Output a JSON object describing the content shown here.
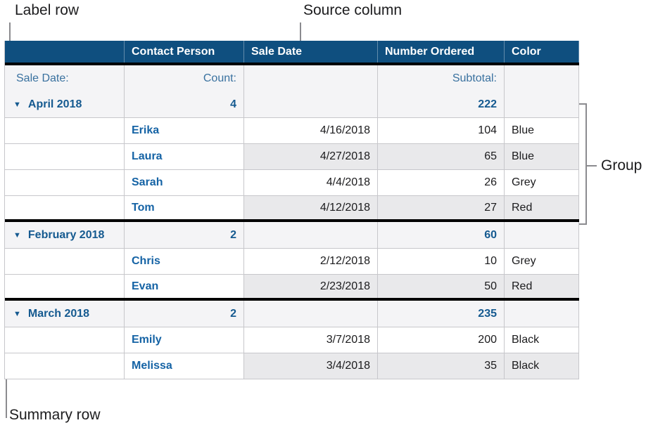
{
  "annotations": {
    "label_row": "Label row",
    "source_column": "Source column",
    "group": "Group",
    "summary_row": "Summary row"
  },
  "colors": {
    "header_bg": "#0f4f7f",
    "header_text": "#ffffff",
    "label_blue": "#39719f",
    "bold_blue": "#1563a5",
    "summary_blue": "#155a90",
    "summary_row_bg": "#f4f4f6",
    "alt_row_bg": "#e9e9eb",
    "cell_border": "#c7c7cb",
    "heavy_border": "#000000",
    "callout_line": "#8b8b8f",
    "annotation_text": "#1c1c1e"
  },
  "table": {
    "disclosure_icon": "▼",
    "columns": [
      "",
      "Contact Person",
      "Sale Date",
      "Number Ordered",
      "Color"
    ],
    "label_row": {
      "category": "Sale Date:",
      "contact": "Count:",
      "sale_date": "",
      "number": "Subtotal:",
      "color": ""
    },
    "groups": [
      {
        "name": "April 2018",
        "count": "4",
        "subtotal": "222",
        "rows": [
          {
            "contact": "Erika",
            "sale_date": "4/16/2018",
            "number": "104",
            "color": "Blue"
          },
          {
            "contact": "Laura",
            "sale_date": "4/27/2018",
            "number": "65",
            "color": "Blue"
          },
          {
            "contact": "Sarah",
            "sale_date": "4/4/2018",
            "number": "26",
            "color": "Grey"
          },
          {
            "contact": "Tom",
            "sale_date": "4/12/2018",
            "number": "27",
            "color": "Red"
          }
        ]
      },
      {
        "name": "February 2018",
        "count": "2",
        "subtotal": "60",
        "rows": [
          {
            "contact": "Chris",
            "sale_date": "2/12/2018",
            "number": "10",
            "color": "Grey"
          },
          {
            "contact": "Evan",
            "sale_date": "2/23/2018",
            "number": "50",
            "color": "Red"
          }
        ]
      },
      {
        "name": "March 2018",
        "count": "2",
        "subtotal": "235",
        "rows": [
          {
            "contact": "Emily",
            "sale_date": "3/7/2018",
            "number": "200",
            "color": "Black"
          },
          {
            "contact": "Melissa",
            "sale_date": "3/4/2018",
            "number": "35",
            "color": "Black"
          }
        ]
      }
    ]
  }
}
